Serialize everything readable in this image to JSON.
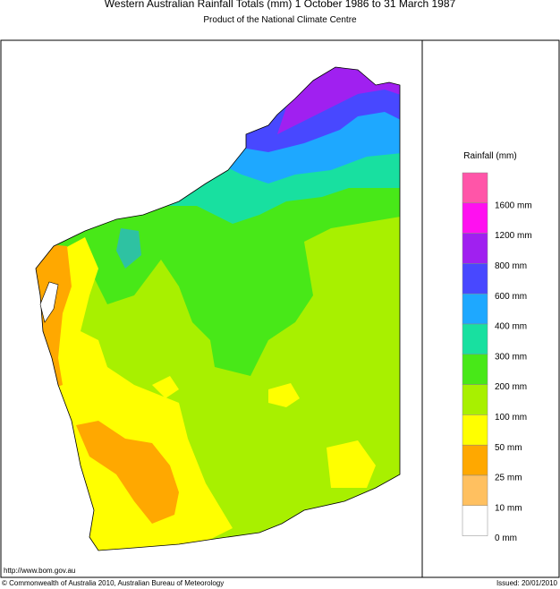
{
  "header": {
    "title": "Western Australian Rainfall Totals (mm) 1 October 1986 to 31 March 1987",
    "subtitle": "Product of the National Climate Centre"
  },
  "legend": {
    "title": "Rainfall (mm)",
    "labels": [
      "1600 mm",
      "1200 mm",
      "800 mm",
      "600 mm",
      "400 mm",
      "300 mm",
      "200 mm",
      "100 mm",
      "50 mm",
      "25 mm",
      "10 mm",
      "0 mm"
    ],
    "colors": [
      "#ff55a8",
      "#ff10f0",
      "#a020f0",
      "#4848ff",
      "#1ea8ff",
      "#18e0a0",
      "#48e818",
      "#a8f000",
      "#ffff00",
      "#ffa800",
      "#ffc060",
      "#ffffff"
    ]
  },
  "footer": {
    "url": "http://www.bom.gov.au",
    "copyright": "© Commonwealth of Australia 2010, Australian Bureau of Meteorology",
    "issued": "Issued: 20/01/2010"
  }
}
